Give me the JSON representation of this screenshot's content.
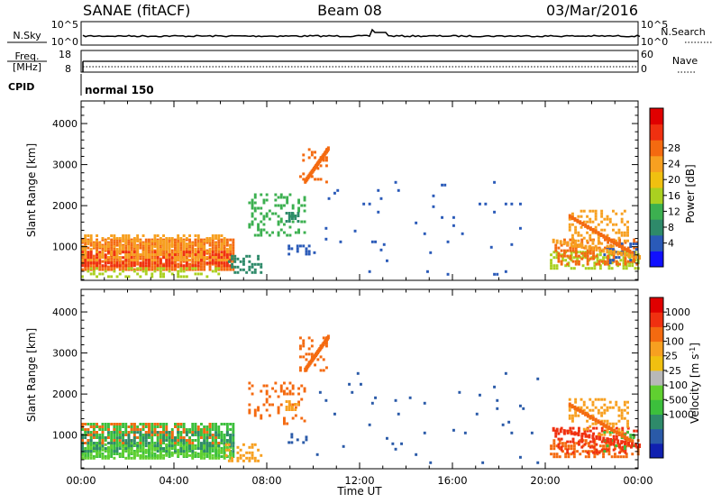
{
  "header": {
    "station": "SANAE (fitACF)",
    "beam": "Beam 08",
    "date": "03/Mar/2016"
  },
  "nsky_panel": {
    "left_label": "N.Sky",
    "right_label": "N.Search",
    "left_ticks": [
      "10^5",
      "10^0"
    ],
    "right_ticks": [
      "10^5",
      "10^0"
    ]
  },
  "freq_panel": {
    "left_label": "Freq.",
    "left_unit": "[MHz]",
    "right_label": "Nave",
    "left_ticks": [
      "18",
      "8"
    ],
    "right_ticks": [
      "60",
      "0"
    ]
  },
  "cpid": {
    "label": "CPID",
    "mode": "normal 150"
  },
  "time_axis": {
    "label": "Time UT",
    "ticks": [
      "00:00",
      "04:00",
      "08:00",
      "12:00",
      "16:00",
      "20:00",
      "00:00"
    ]
  },
  "chart_data": [
    {
      "type": "heatmap",
      "name": "power",
      "ylabel": "Slant Range [km]",
      "yticks": [
        1000,
        2000,
        3000,
        4000
      ],
      "ylim": [
        180,
        4550
      ],
      "xlim_hours": [
        0,
        24
      ],
      "colorbar": {
        "label": "Power [dB]",
        "ticks": [
          "4",
          "8",
          "12",
          "16",
          "20",
          "24",
          "28"
        ],
        "colors": [
          "#1010ff",
          "#2a5ab8",
          "#2e8a6a",
          "#3cb050",
          "#aad020",
          "#f0c010",
          "#f7a020",
          "#f46a10",
          "#f03010",
          "#e00000"
        ]
      },
      "regions": [
        {
          "t0": 0.0,
          "t1": 6.6,
          "r0": 450,
          "r1": 1200,
          "color": "#f46a10",
          "density": 0.85
        },
        {
          "t0": 0.0,
          "t1": 6.4,
          "r0": 550,
          "r1": 900,
          "color": "#f03010",
          "density": 0.6
        },
        {
          "t0": 0.0,
          "t1": 6.5,
          "r0": 700,
          "r1": 1300,
          "color": "#f7a020",
          "density": 0.5
        },
        {
          "t0": 0.0,
          "t1": 6.0,
          "r0": 300,
          "r1": 500,
          "color": "#aad020",
          "density": 0.4
        },
        {
          "t0": 6.2,
          "t1": 7.8,
          "r0": 400,
          "r1": 800,
          "color": "#2e8a6a",
          "density": 0.4
        },
        {
          "t0": 7.2,
          "t1": 9.6,
          "r0": 1300,
          "r1": 2300,
          "color": "#3cb050",
          "density": 0.25
        },
        {
          "t0": 8.8,
          "t1": 9.4,
          "r0": 1600,
          "r1": 1850,
          "color": "#2e8a6a",
          "density": 0.7
        },
        {
          "t0": 8.9,
          "t1": 9.8,
          "r0": 850,
          "r1": 1050,
          "color": "#2a5ab8",
          "density": 0.6
        },
        {
          "t0": 9.4,
          "t1": 10.6,
          "r0": 2600,
          "r1": 3400,
          "color": "#f46a10",
          "density": 0.3
        },
        {
          "t0": 10.0,
          "t1": 20.0,
          "r0": 300,
          "r1": 2600,
          "color": "#2a5ab8",
          "density": 0.015
        },
        {
          "t0": 20.2,
          "t1": 24.0,
          "r0": 450,
          "r1": 900,
          "color": "#aad020",
          "density": 0.55
        },
        {
          "t0": 20.4,
          "t1": 24.0,
          "r0": 600,
          "r1": 1200,
          "color": "#f46a10",
          "density": 0.45
        },
        {
          "t0": 21.0,
          "t1": 23.6,
          "r0": 1000,
          "r1": 1900,
          "color": "#f7a020",
          "density": 0.35
        },
        {
          "t0": 22.5,
          "t1": 24.0,
          "r0": 600,
          "r1": 1100,
          "color": "#2a5ab8",
          "density": 0.25
        }
      ],
      "streaks": [
        {
          "t0": 9.6,
          "r0": 2600,
          "t1": 10.6,
          "r1": 3400,
          "color": "#f46a10"
        },
        {
          "t0": 21.0,
          "r0": 1750,
          "t1": 23.7,
          "r1": 850,
          "color": "#f46a10"
        },
        {
          "t0": 20.3,
          "r0": 1150,
          "t1": 24.0,
          "r1": 750,
          "color": "#f7a020"
        }
      ]
    },
    {
      "type": "heatmap",
      "name": "velocity",
      "ylabel": "Slant Range [km]",
      "yticks": [
        1000,
        2000,
        3000,
        4000
      ],
      "ylim": [
        180,
        4550
      ],
      "xlim_hours": [
        0,
        24
      ],
      "colorbar": {
        "label": "Velocity [m s^-1]",
        "ticks": [
          "1000",
          "500",
          "100",
          "25",
          "-25",
          "-100",
          "-500",
          "-1000"
        ],
        "colors": [
          "#1020b0",
          "#2a5aa8",
          "#2e8a6a",
          "#3cbf3c",
          "#60d030",
          "#b8b8b8",
          "#f0c010",
          "#f7a020",
          "#f46a10",
          "#f03010",
          "#e00000"
        ]
      },
      "regions": [
        {
          "t0": 0.0,
          "t1": 6.6,
          "r0": 500,
          "r1": 1300,
          "color": "#3cbf3c",
          "density": 0.7
        },
        {
          "t0": 0.0,
          "t1": 6.5,
          "r0": 450,
          "r1": 800,
          "color": "#60d030",
          "density": 0.55
        },
        {
          "t0": 0.0,
          "t1": 6.0,
          "r0": 800,
          "r1": 1300,
          "color": "#f46a10",
          "density": 0.35
        },
        {
          "t0": 0.0,
          "t1": 6.6,
          "r0": 600,
          "r1": 1100,
          "color": "#2e8a6a",
          "density": 0.3
        },
        {
          "t0": 6.2,
          "t1": 7.8,
          "r0": 400,
          "r1": 800,
          "color": "#f7a020",
          "density": 0.3
        },
        {
          "t0": 7.2,
          "t1": 9.6,
          "r0": 1300,
          "r1": 2300,
          "color": "#f46a10",
          "density": 0.2
        },
        {
          "t0": 8.8,
          "t1": 9.4,
          "r0": 1600,
          "r1": 1850,
          "color": "#f7a020",
          "density": 0.7
        },
        {
          "t0": 8.9,
          "t1": 9.8,
          "r0": 850,
          "r1": 1050,
          "color": "#2a5aa8",
          "density": 0.4
        },
        {
          "t0": 9.4,
          "t1": 10.6,
          "r0": 2600,
          "r1": 3400,
          "color": "#f46a10",
          "density": 0.3
        },
        {
          "t0": 10.0,
          "t1": 20.0,
          "r0": 300,
          "r1": 2600,
          "color": "#2a5aa8",
          "density": 0.015
        },
        {
          "t0": 20.2,
          "t1": 24.0,
          "r0": 450,
          "r1": 900,
          "color": "#f46a10",
          "density": 0.5
        },
        {
          "t0": 20.4,
          "t1": 24.0,
          "r0": 600,
          "r1": 1200,
          "color": "#f03010",
          "density": 0.35
        },
        {
          "t0": 21.0,
          "t1": 23.6,
          "r0": 1000,
          "r1": 1900,
          "color": "#f7a020",
          "density": 0.35
        },
        {
          "t0": 22.5,
          "t1": 24.0,
          "r0": 600,
          "r1": 1100,
          "color": "#3cbf3c",
          "density": 0.2
        }
      ],
      "streaks": [
        {
          "t0": 9.6,
          "r0": 2600,
          "t1": 10.6,
          "r1": 3400,
          "color": "#f46a10"
        },
        {
          "t0": 21.0,
          "r0": 1750,
          "t1": 23.7,
          "r1": 850,
          "color": "#f46a10"
        },
        {
          "t0": 20.3,
          "r0": 1150,
          "t1": 24.0,
          "r1": 750,
          "color": "#f03010"
        }
      ]
    }
  ]
}
